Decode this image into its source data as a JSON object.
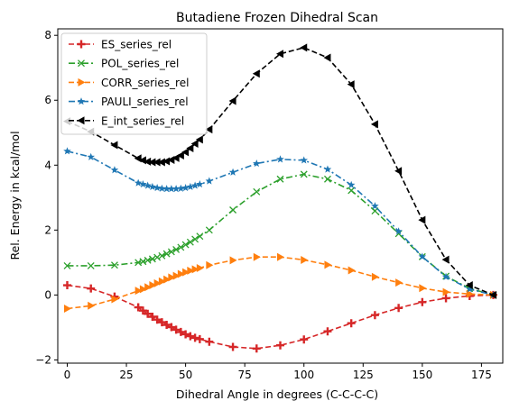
{
  "chart_data": {
    "type": "line",
    "title": "Butadiene Frozen Dihedral Scan",
    "xlabel": "Dihedral Angle in degrees (C-C-C-C)",
    "ylabel": "Rel. Energy in kcal/mol",
    "xlim": [
      -4,
      184
    ],
    "ylim": [
      -2.1,
      8.2
    ],
    "xticks": [
      0,
      25,
      50,
      75,
      100,
      125,
      150,
      175
    ],
    "yticks": [
      -2,
      0,
      2,
      4,
      6,
      8
    ],
    "grid": false,
    "legend_position": "top-left",
    "x": [
      0,
      10,
      20,
      30,
      32,
      34,
      36,
      38,
      40,
      42,
      44,
      46,
      48,
      50,
      52,
      54,
      56,
      60,
      70,
      80,
      90,
      100,
      110,
      120,
      130,
      140,
      150,
      160,
      170,
      180
    ],
    "series": [
      {
        "name": "ES_series_rel",
        "color": "#d62728",
        "dash": "dashed",
        "marker": "plus",
        "values": [
          0.3,
          0.2,
          -0.05,
          -0.38,
          -0.48,
          -0.58,
          -0.67,
          -0.76,
          -0.84,
          -0.92,
          -0.99,
          -1.07,
          -1.14,
          -1.21,
          -1.27,
          -1.32,
          -1.36,
          -1.44,
          -1.6,
          -1.65,
          -1.55,
          -1.37,
          -1.12,
          -0.87,
          -0.62,
          -0.4,
          -0.22,
          -0.1,
          -0.03,
          0.0
        ]
      },
      {
        "name": "POL_series_rel",
        "color": "#2ca02c",
        "dash": "dashdot",
        "marker": "x",
        "values": [
          0.9,
          0.9,
          0.92,
          1.0,
          1.03,
          1.07,
          1.11,
          1.16,
          1.21,
          1.27,
          1.33,
          1.4,
          1.47,
          1.55,
          1.63,
          1.72,
          1.81,
          2.0,
          2.62,
          3.18,
          3.57,
          3.72,
          3.57,
          3.22,
          2.59,
          1.89,
          1.18,
          0.58,
          0.2,
          0.0
        ]
      },
      {
        "name": "CORR_series_rel",
        "color": "#ff7f0e",
        "dash": "dashed",
        "marker": "triangle-right",
        "values": [
          -0.42,
          -0.33,
          -0.13,
          0.13,
          0.18,
          0.24,
          0.3,
          0.36,
          0.42,
          0.48,
          0.54,
          0.59,
          0.65,
          0.7,
          0.75,
          0.79,
          0.83,
          0.92,
          1.07,
          1.17,
          1.17,
          1.08,
          0.93,
          0.76,
          0.56,
          0.38,
          0.21,
          0.09,
          0.03,
          0.0
        ]
      },
      {
        "name": "PAULI_series_rel",
        "color": "#1f77b4",
        "dash": "dashdot",
        "marker": "star",
        "values": [
          4.43,
          4.25,
          3.85,
          3.45,
          3.41,
          3.37,
          3.33,
          3.3,
          3.28,
          3.27,
          3.27,
          3.27,
          3.28,
          3.3,
          3.33,
          3.37,
          3.41,
          3.51,
          3.78,
          4.05,
          4.18,
          4.15,
          3.87,
          3.39,
          2.74,
          1.96,
          1.18,
          0.56,
          0.18,
          0.0
        ]
      },
      {
        "name": "E_int_series_rel",
        "color": "#000000",
        "dash": "dashed",
        "marker": "triangle-left",
        "values": [
          5.35,
          5.03,
          4.62,
          4.21,
          4.15,
          4.11,
          4.09,
          4.09,
          4.09,
          4.12,
          4.16,
          4.22,
          4.3,
          4.4,
          4.52,
          4.66,
          4.79,
          5.1,
          5.98,
          6.82,
          7.43,
          7.62,
          7.31,
          6.49,
          5.26,
          3.82,
          2.31,
          1.09,
          0.3,
          0.0
        ]
      }
    ]
  }
}
